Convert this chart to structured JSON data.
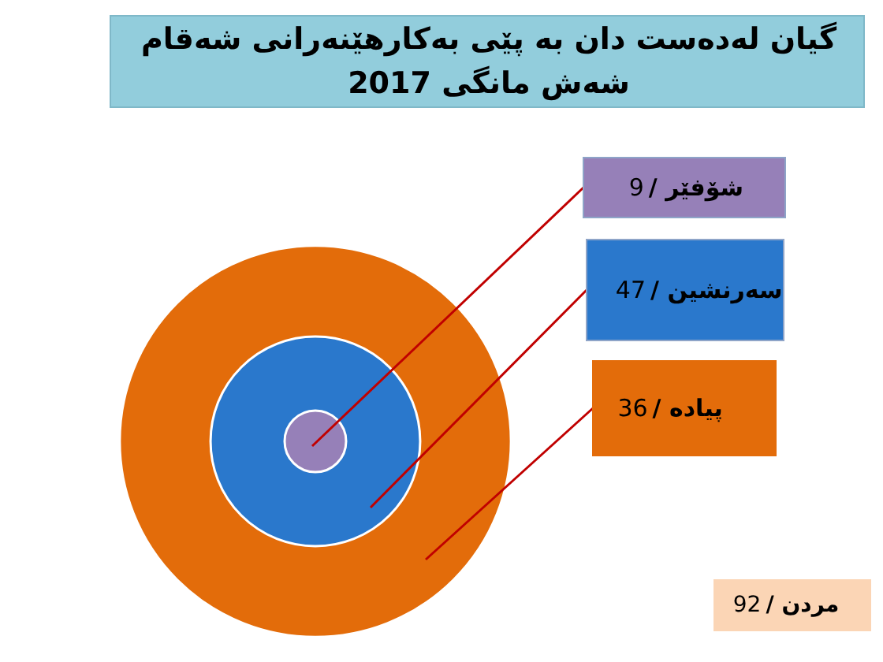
{
  "chart_data": {
    "type": "other",
    "title": "گیان لەدەست دان بە پێی بەکارهێنەرانی شەقام",
    "subtitle": "شەش مانگی 2017",
    "categories": [
      "/ شۆفێر",
      "/ سەرنشین",
      "/ پیادە",
      "/ مردن"
    ],
    "values": [
      9,
      47,
      36,
      92
    ],
    "data_labels": true,
    "colors": [
      "#9680b8",
      "#2a78cc",
      "#e36c0a",
      "#fbd5b5"
    ]
  }
}
